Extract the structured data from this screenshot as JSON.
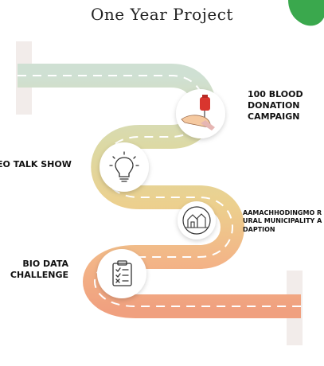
{
  "title": "One Year Project",
  "milestones": [
    {
      "label": "100 BLOOD DONATION CAMPAIGN",
      "icon": "blood-donation-icon"
    },
    {
      "label": "EO TALK SHOW",
      "icon": "lightbulb-icon"
    },
    {
      "label": "AAMACHHODINGMO RURAL MUNICIPALITY ADAPTION",
      "icon": "village-icon"
    },
    {
      "label": "BIO DATA CHALLENGE",
      "icon": "clipboard-checklist-icon"
    }
  ],
  "colors": {
    "road_start": "#cfe0d3",
    "road_mid": "#ecd08e",
    "road_end": "#f0a07f",
    "post": "#f2ecea",
    "accent": "#3aa84d"
  }
}
